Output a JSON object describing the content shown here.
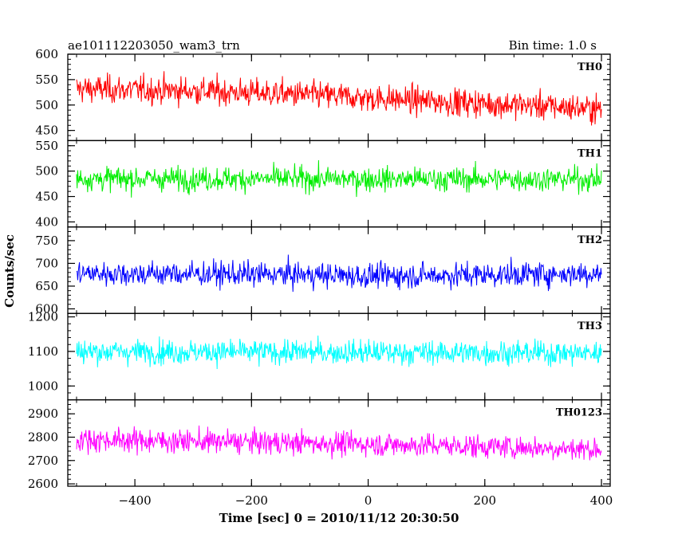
{
  "chart_data": {
    "type": "line",
    "title": "ae101112203050_wam3_trn",
    "bin_time": "Bin time: 1.0 s",
    "xlabel": "Time [sec] 0 = 2010/11/12 20:30:50",
    "ylabel": "Counts/sec",
    "xlim": [
      -515,
      415
    ],
    "x_ticks": [
      -400,
      -200,
      0,
      200,
      400
    ],
    "x_range_data": [
      -500,
      400
    ],
    "bin_seconds": 1.0,
    "grid": false,
    "panels": [
      {
        "name": "TH0",
        "color": "#ff0000",
        "ylim": [
          430,
          600
        ],
        "y_ticks": [
          450,
          500,
          550,
          600
        ],
        "trend": [
          [
            -500,
            532
          ],
          [
            -300,
            528
          ],
          [
            -100,
            520
          ],
          [
            100,
            508
          ],
          [
            300,
            498
          ],
          [
            400,
            492
          ]
        ],
        "noise_amplitude": 35
      },
      {
        "name": "TH1",
        "color": "#00ee00",
        "ylim": [
          390,
          560
        ],
        "y_ticks": [
          400,
          450,
          500,
          550
        ],
        "trend": [
          [
            -500,
            485
          ],
          [
            400,
            484
          ]
        ],
        "noise_amplitude": 30
      },
      {
        "name": "TH2",
        "color": "#0000ff",
        "ylim": [
          590,
          780
        ],
        "y_ticks": [
          600,
          650,
          700,
          750
        ],
        "tick_labels": [
          "600",
          "650",
          "700",
          "750"
        ],
        "trend": [
          [
            -500,
            678
          ],
          [
            -100,
            675
          ],
          [
            0,
            672
          ],
          [
            400,
            678
          ]
        ],
        "noise_amplitude": 35
      },
      {
        "name": "TH3",
        "color": "#00ffff",
        "ylim": [
          960,
          1210
        ],
        "y_ticks": [
          1000,
          1100,
          1200
        ],
        "trend": [
          [
            -500,
            1100
          ],
          [
            400,
            1095
          ]
        ],
        "noise_amplitude": 45
      },
      {
        "name": "TH0123",
        "color": "#ff00ff",
        "ylim": [
          2590,
          2960
        ],
        "y_ticks": [
          2600,
          2700,
          2800,
          2900
        ],
        "trend": [
          [
            -500,
            2790
          ],
          [
            -100,
            2775
          ],
          [
            200,
            2760
          ],
          [
            400,
            2748
          ]
        ],
        "noise_amplitude": 65
      }
    ]
  }
}
